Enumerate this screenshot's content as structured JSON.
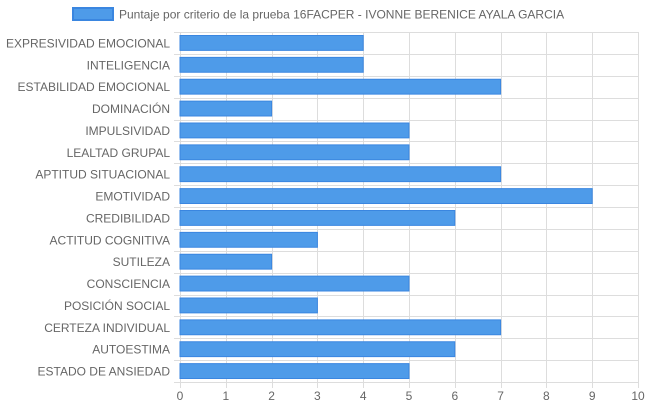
{
  "chart_data": {
    "type": "bar",
    "orientation": "horizontal",
    "legend": {
      "position": "top",
      "label": "Puntaje por criterio de la prueba 16FACPER - IVONNE BERENICE AYALA GARCIA"
    },
    "categories": [
      "EXPRESIVIDAD EMOCIONAL",
      "INTELIGENCIA",
      "ESTABILIDAD EMOCIONAL",
      "DOMINACIÓN",
      "IMPULSIVIDAD",
      "LEALTAD GRUPAL",
      "APTITUD SITUACIONAL",
      "EMOTIVIDAD",
      "CREDIBILIDAD",
      "ACTITUD COGNITIVA",
      "SUTILEZA",
      "CONSCIENCIA",
      "POSICIÓN SOCIAL",
      "CERTEZA INDIVIDUAL",
      "AUTOESTIMA",
      "ESTADO DE ANSIEDAD"
    ],
    "series": [
      {
        "name": "Puntaje por criterio de la prueba 16FACPER - IVONNE BERENICE AYALA GARCIA",
        "values": [
          4,
          4,
          7,
          2,
          5,
          5,
          7,
          9,
          6,
          3,
          2,
          5,
          3,
          7,
          6,
          5
        ]
      }
    ],
    "xlim": [
      0,
      10
    ],
    "xticks": [
      "0",
      "1",
      "2",
      "3",
      "4",
      "5",
      "6",
      "7",
      "8",
      "9",
      "10"
    ],
    "grid": true,
    "colors": {
      "bar_fill": "#4e9be9",
      "bar_stroke": "#3a86e0",
      "grid": "#dddddd",
      "axis_text": "#666666"
    }
  }
}
